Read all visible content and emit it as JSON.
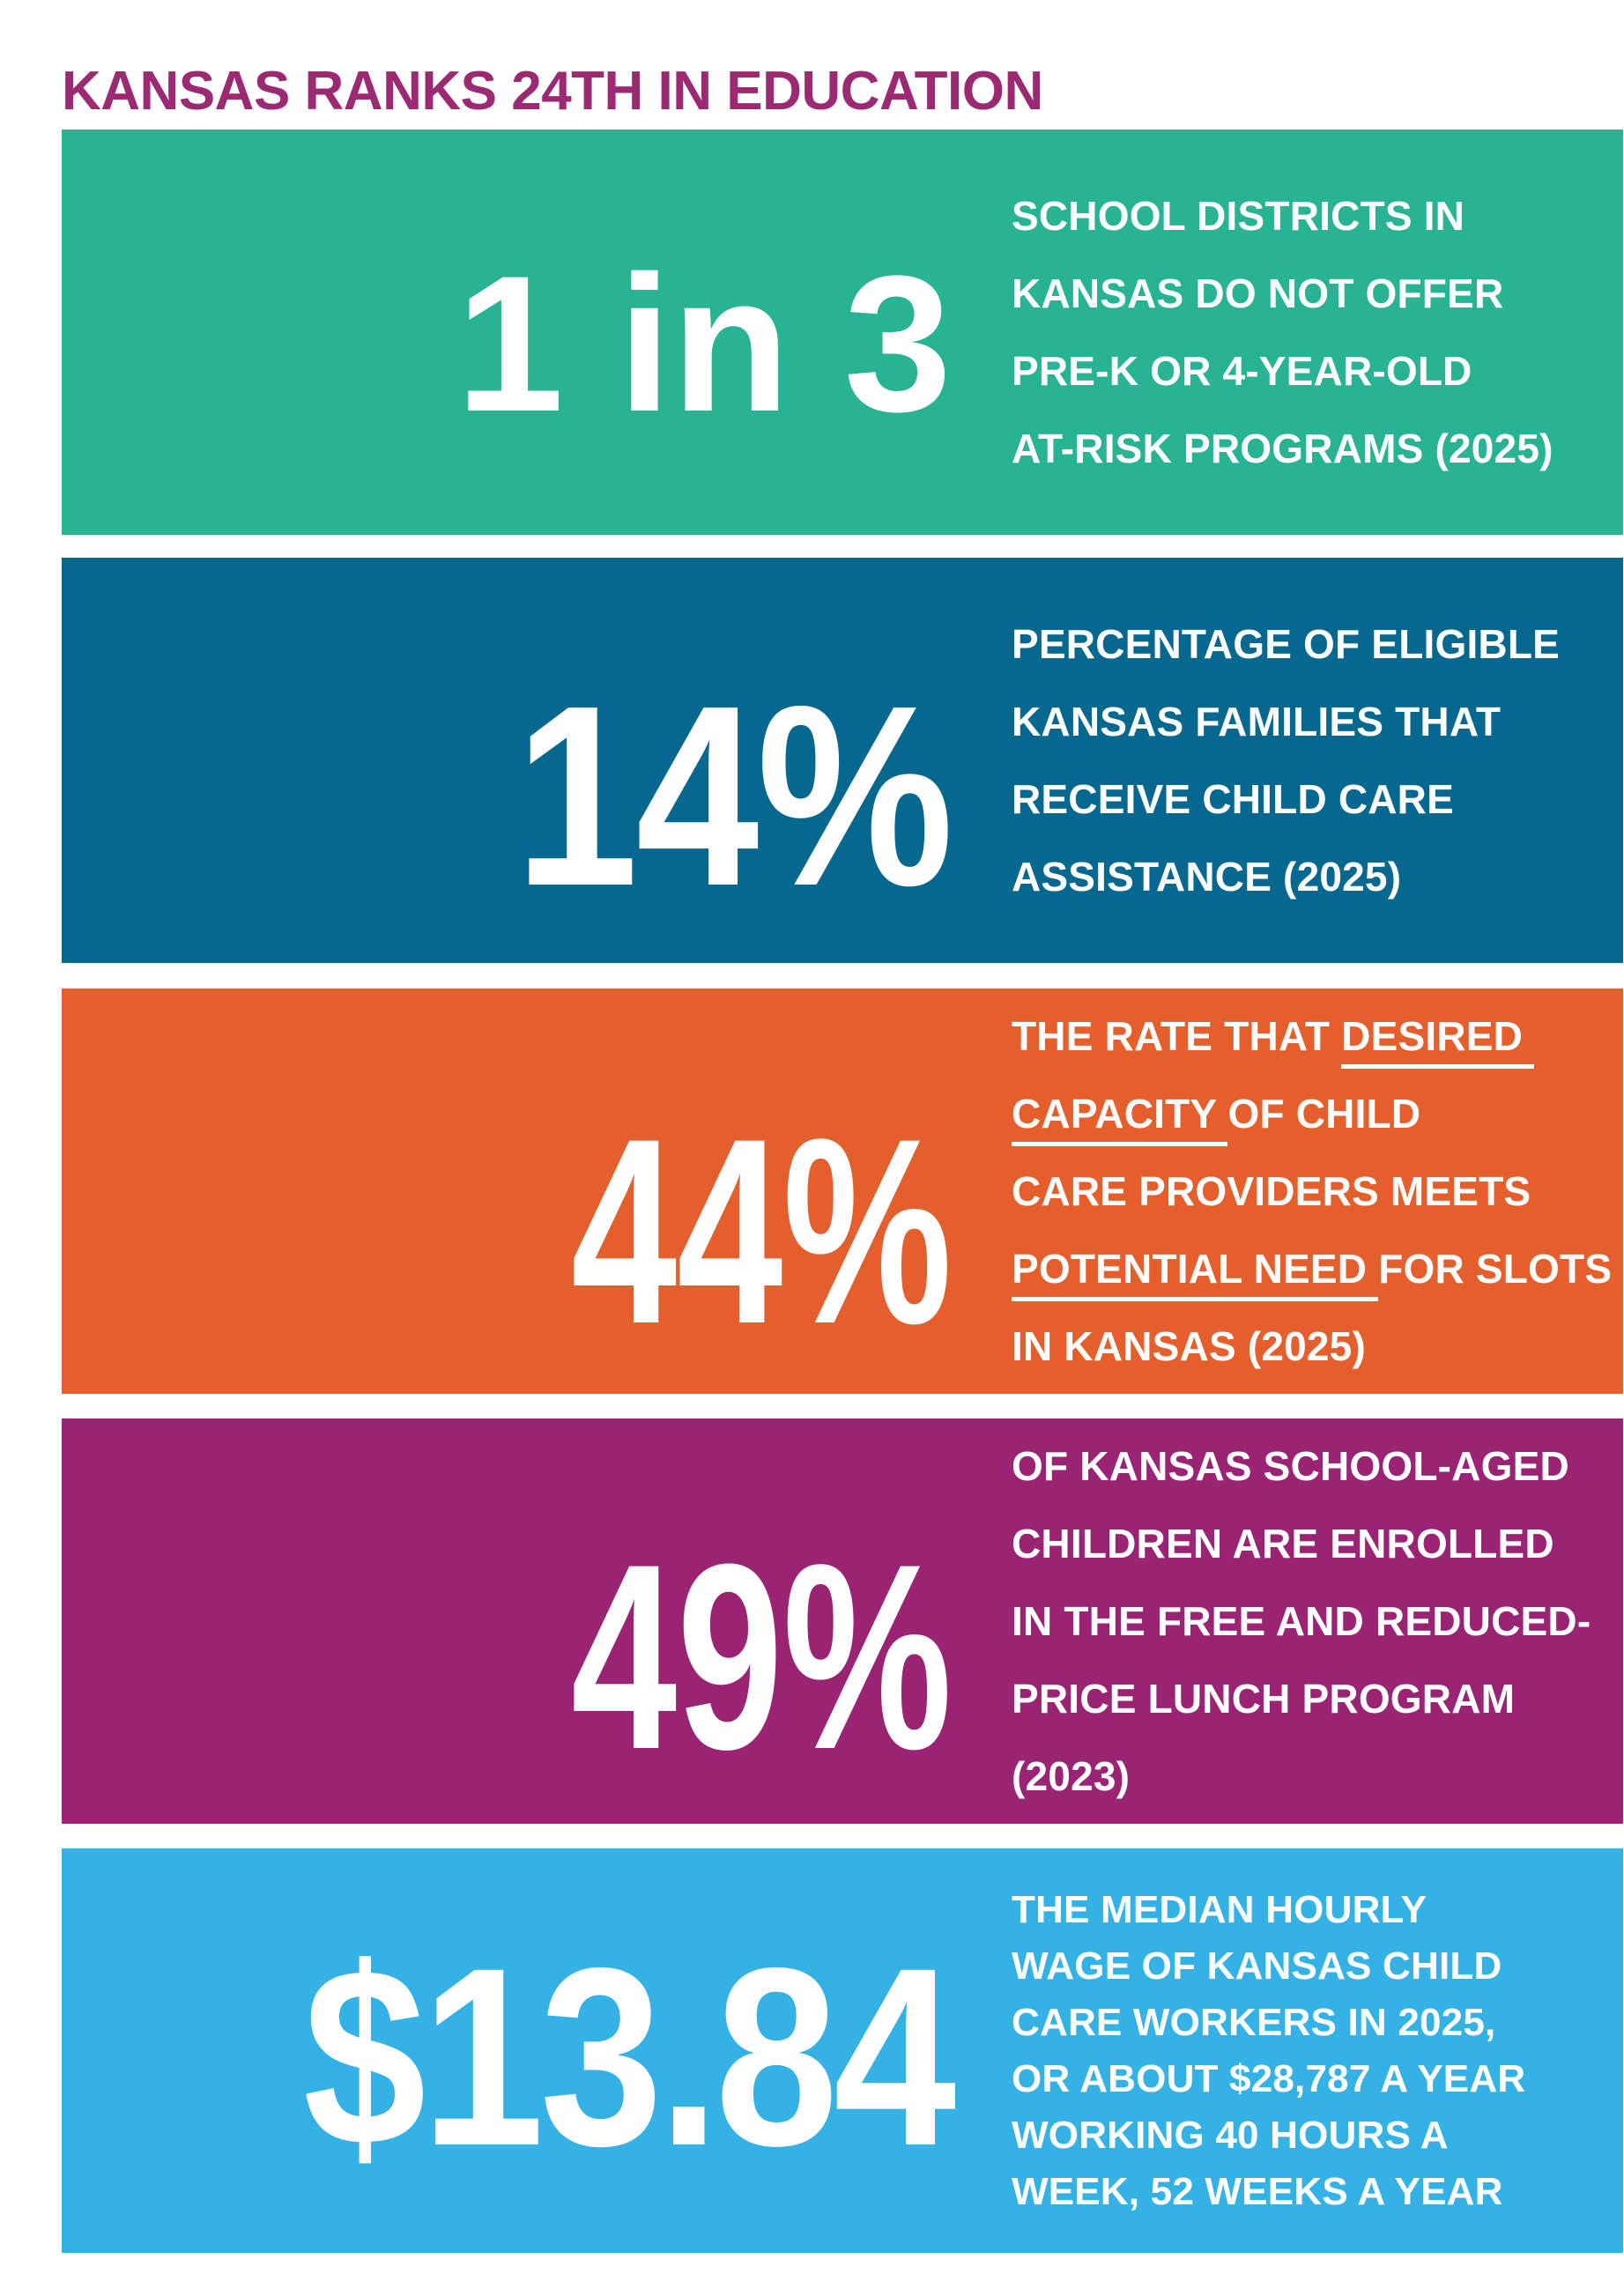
{
  "title": "KANSAS RANKS 24TH IN EDUCATION",
  "colors": {
    "title_text": "#9c2a72",
    "stat_text": "#ffffff",
    "description_text": "#ffffff",
    "background": "#ffffff",
    "block_teal": "#28b493",
    "block_blue": "#07688f",
    "block_orange": "#e55f2d",
    "block_magenta": "#9a2473",
    "block_sky": "#35b2e5"
  },
  "blocks": [
    {
      "stat": "1 in 3",
      "bg": "#28b493",
      "lines": [
        [
          {
            "t": "SCHOOL DISTRICTS IN"
          }
        ],
        [
          {
            "t": "KANSAS DO NOT OFFER"
          }
        ],
        [
          {
            "t": "PRE-K OR 4-YEAR-OLD"
          }
        ],
        [
          {
            "t": "AT-RISK PROGRAMS (2025)"
          }
        ]
      ]
    },
    {
      "stat": "14%",
      "bg": "#07688f",
      "lines": [
        [
          {
            "t": "PERCENTAGE OF ELIGIBLE"
          }
        ],
        [
          {
            "t": "KANSAS FAMILIES THAT"
          }
        ],
        [
          {
            "t": "RECEIVE CHILD CARE"
          }
        ],
        [
          {
            "t": "ASSISTANCE (2025)"
          }
        ]
      ]
    },
    {
      "stat": "44%",
      "bg": "#e55f2d",
      "lines": [
        [
          {
            "t": "THE RATE THAT "
          },
          {
            "t": "DESIRED ",
            "u": true
          }
        ],
        [
          {
            "t": "CAPACITY ",
            "u": true
          },
          {
            "t": "OF CHILD"
          }
        ],
        [
          {
            "t": "CARE PROVIDERS MEETS"
          }
        ],
        [
          {
            "t": "POTENTIAL NEED ",
            "u": true
          },
          {
            "t": "FOR SLOTS"
          }
        ],
        [
          {
            "t": "IN KANSAS (2025)"
          }
        ]
      ]
    },
    {
      "stat": "49%",
      "bg": "#9a2473",
      "lines": [
        [
          {
            "t": "OF KANSAS SCHOOL-AGED"
          }
        ],
        [
          {
            "t": "CHILDREN ARE ENROLLED"
          }
        ],
        [
          {
            "t": "IN THE FREE AND REDUCED-"
          }
        ],
        [
          {
            "t": "PRICE LUNCH PROGRAM"
          }
        ],
        [
          {
            "t": "(2023)"
          }
        ]
      ]
    },
    {
      "stat": "$13.84",
      "bg": "#35b2e5",
      "lines": [
        [
          {
            "t": "THE MEDIAN HOURLY"
          }
        ],
        [
          {
            "t": "WAGE OF KANSAS CHILD"
          }
        ],
        [
          {
            "t": "CARE WORKERS IN 2025,"
          }
        ],
        [
          {
            "t": "OR ABOUT $28,787 A YEAR"
          }
        ],
        [
          {
            "t": "WORKING 40 HOURS A"
          }
        ],
        [
          {
            "t": "WEEK, 52 WEEKS A YEAR"
          }
        ]
      ]
    }
  ]
}
